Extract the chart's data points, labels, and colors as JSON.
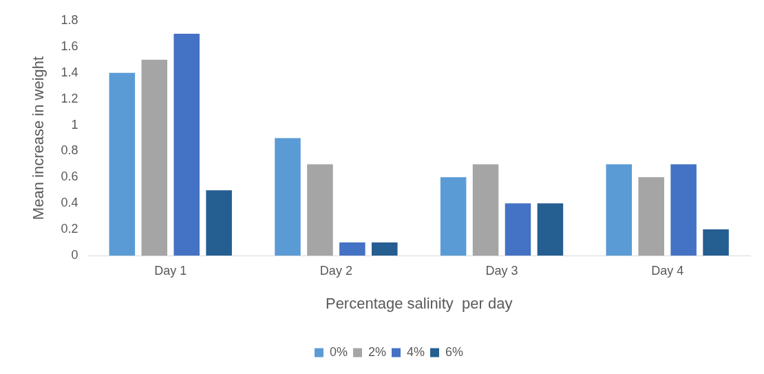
{
  "chart_data": {
    "type": "bar",
    "xlabel": "Percentage salinity  per day",
    "ylabel": "Mean increase in weight",
    "categories": [
      "Day 1",
      "Day 2",
      "Day 3",
      "Day 4"
    ],
    "series": [
      {
        "name": "0%",
        "color": "#5b9bd5",
        "values": [
          1.4,
          0.9,
          0.6,
          0.7
        ]
      },
      {
        "name": "2%",
        "color": "#a5a5a5",
        "values": [
          1.5,
          0.7,
          0.7,
          0.6
        ]
      },
      {
        "name": "4%",
        "color": "#4472c4",
        "values": [
          1.7,
          0.1,
          0.4,
          0.7
        ]
      },
      {
        "name": "6%",
        "color": "#255e91",
        "values": [
          0.5,
          0.1,
          0.4,
          0.2
        ]
      }
    ],
    "ylim": [
      0,
      1.8
    ],
    "yticks": [
      0,
      0.2,
      0.4,
      0.6,
      0.8,
      1,
      1.2,
      1.4,
      1.6,
      1.8
    ],
    "grid": false,
    "legend": "bottom"
  }
}
